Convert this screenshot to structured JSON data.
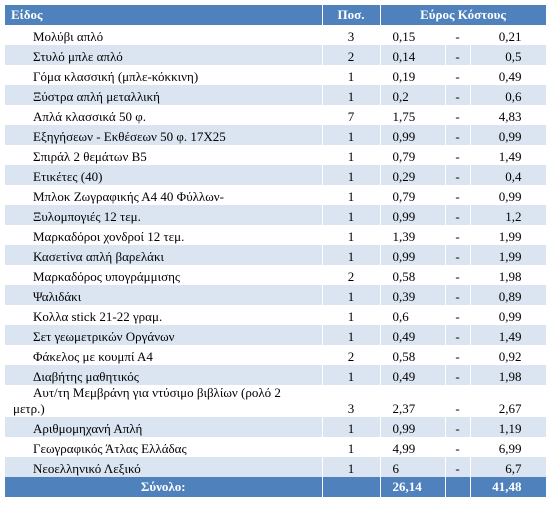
{
  "header": {
    "item": "Είδος",
    "qty": "Ποσ.",
    "range": "Εύρος Κόστους"
  },
  "rows": [
    [
      "Μολύβι απλό",
      "3",
      "0,15",
      "-",
      "0,21"
    ],
    [
      "Στυλό μπλε απλό",
      "2",
      "0,14",
      "-",
      "0,5"
    ],
    [
      "Γόμα κλασσική (μπλε-κόκκινη)",
      "1",
      "0,19",
      "-",
      "0,49"
    ],
    [
      "Ξύστρα απλή μεταλλική",
      "1",
      "0,2",
      "-",
      "0,6"
    ],
    [
      "Απλά κλασσικά 50 φ.",
      "7",
      "1,75",
      "-",
      "4,83"
    ],
    [
      "Εξηγήσεων - Εκθέσεων 50 φ. 17Χ25",
      "1",
      "0,99",
      "-",
      "0,99"
    ],
    [
      "Σπιράλ 2 θεμάτων Β5",
      "1",
      "0,79",
      "-",
      "1,49"
    ],
    [
      "Ετικέτες (40)",
      "1",
      "0,29",
      "-",
      "0,4"
    ],
    [
      "Μπλοκ Ζωγραφικής Α4 40 Φύλλων-",
      "1",
      "0,79",
      "-",
      "0,99"
    ],
    [
      "Ξυλομπογιές 12 τεμ.",
      "1",
      "0,99",
      "-",
      "1,2"
    ],
    [
      "Μαρκαδόροι χονδροί 12 τεμ.",
      "1",
      "1,39",
      "-",
      "1,99"
    ],
    [
      "Κασετίνα απλή βαρελάκι",
      "1",
      "0,99",
      "-",
      "1,99"
    ],
    [
      "Μαρκαδόρος υπογράμμισης",
      "2",
      "0,58",
      "-",
      "1,98"
    ],
    [
      "Ψαλιδάκι",
      "1",
      "0,39",
      "-",
      "0,89"
    ],
    [
      "Κολλα stick 21-22 γραμ.",
      "1",
      "0,6",
      "-",
      "0,99"
    ],
    [
      "Σετ γεωμετρικών Οργάνων",
      "1",
      "0,49",
      "-",
      "1,49"
    ],
    [
      "Φάκελος με κουμπί Α4",
      "2",
      "0,58",
      "-",
      "0,92"
    ],
    [
      "Διαβήτης μαθητικός",
      "1",
      "0,49",
      "-",
      "1,98"
    ],
    [
      "Αυτ/τη Μεμβράνη για ντύσιμο βιβλίων (ρολό 2 μετρ.)",
      "3",
      "2,37",
      "-",
      "2,67"
    ],
    [
      "Αριθμομηχανή Απλή",
      "1",
      "0,99",
      "-",
      "1,19"
    ],
    [
      "Γεωγραφικός Άτλας Ελλάδας",
      "1",
      "4,99",
      "-",
      "6,99"
    ],
    [
      "Νεοελληνικό Λεξικό",
      "1",
      "6",
      "-",
      "6,7"
    ]
  ],
  "total": {
    "label": "Σύνολο:",
    "min": "26,14",
    "max": "41,48"
  }
}
